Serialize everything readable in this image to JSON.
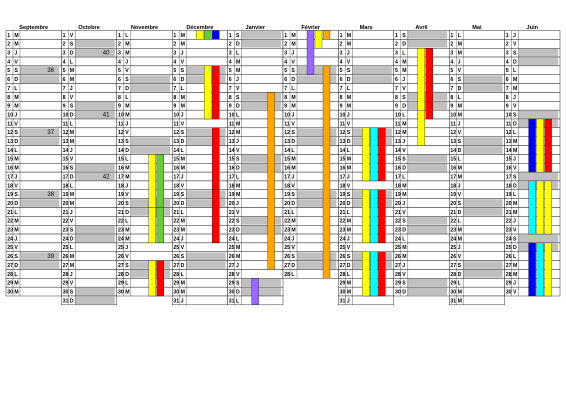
{
  "months": [
    {
      "name": "Septembre",
      "days": 30,
      "first_weekday": "M"
    },
    {
      "name": "Octobre",
      "days": 31,
      "first_weekday": "V"
    },
    {
      "name": "Novembre",
      "days": 30,
      "first_weekday": "L"
    },
    {
      "name": "Décembre",
      "days": 31,
      "first_weekday": "M"
    },
    {
      "name": "Janvier",
      "days": 31,
      "first_weekday": "S"
    },
    {
      "name": "Février",
      "days": 28,
      "first_weekday": "M"
    },
    {
      "name": "Mars",
      "days": 31,
      "first_weekday": "M"
    },
    {
      "name": "Avril",
      "days": 30,
      "first_weekday": "S"
    },
    {
      "name": "Mai",
      "days": 31,
      "first_weekday": "L"
    },
    {
      "name": "Juin",
      "days": 30,
      "first_weekday": "J"
    }
  ],
  "weekday_letters": [
    "L",
    "M",
    "M",
    "J",
    "V",
    "S",
    "D"
  ],
  "week_numbers": [
    {
      "month": 0,
      "day": 5,
      "label": "36"
    },
    {
      "month": 0,
      "day": 12,
      "label": "37"
    },
    {
      "month": 0,
      "day": 19,
      "label": "38"
    },
    {
      "month": 0,
      "day": 26,
      "label": "39"
    },
    {
      "month": 1,
      "day": 3,
      "label": "40"
    },
    {
      "month": 1,
      "day": 10,
      "label": "41"
    },
    {
      "month": 1,
      "day": 17,
      "label": "42"
    }
  ],
  "colors": {
    "weekend_fill": "#c0c0c0",
    "grid_line": "#000000",
    "yellow": "#ffff00",
    "red": "#ff0000",
    "orange": "#ffa500",
    "purple": "#9966ff",
    "cyan": "#00ffff",
    "green": "#66cc33",
    "blue": "#0000ff"
  },
  "bars": [
    {
      "month": 3,
      "col": 0,
      "start": 1,
      "end": 1,
      "color": "yellow"
    },
    {
      "month": 3,
      "col": 1,
      "start": 1,
      "end": 1,
      "color": "green"
    },
    {
      "month": 3,
      "col": 2,
      "start": 1,
      "end": 1,
      "color": "blue"
    },
    {
      "month": 3,
      "col": 1,
      "start": 5,
      "end": 10,
      "color": "yellow"
    },
    {
      "month": 3,
      "col": 2,
      "start": 5,
      "end": 10,
      "color": "red"
    },
    {
      "month": 3,
      "col": 2,
      "start": 12,
      "end": 18,
      "color": "red"
    },
    {
      "month": 3,
      "col": 2,
      "start": 19,
      "end": 24,
      "color": "red"
    },
    {
      "month": 2,
      "col": 1,
      "start": 15,
      "end": 20,
      "color": "yellow"
    },
    {
      "month": 2,
      "col": 2,
      "start": 15,
      "end": 20,
      "color": "green"
    },
    {
      "month": 2,
      "col": 1,
      "start": 21,
      "end": 24,
      "color": "yellow"
    },
    {
      "month": 2,
      "col": 2,
      "start": 21,
      "end": 24,
      "color": "green"
    },
    {
      "month": 2,
      "col": 1,
      "start": 27,
      "end": 30,
      "color": "yellow"
    },
    {
      "month": 2,
      "col": 2,
      "start": 27,
      "end": 30,
      "color": "red"
    },
    {
      "month": 4,
      "col": 2,
      "start": 8,
      "end": 27,
      "color": "orange"
    },
    {
      "month": 4,
      "col": 0,
      "start": 29,
      "end": 31,
      "color": "purple"
    },
    {
      "month": 5,
      "col": 0,
      "start": 1,
      "end": 5,
      "color": "purple"
    },
    {
      "month": 5,
      "col": 1,
      "start": 1,
      "end": 2,
      "color": "yellow"
    },
    {
      "month": 5,
      "col": 2,
      "start": 1,
      "end": 1,
      "color": "orange"
    },
    {
      "month": 5,
      "col": 2,
      "start": 5,
      "end": 28,
      "color": "orange"
    },
    {
      "month": 6,
      "col": 0,
      "start": 12,
      "end": 17,
      "color": "yellow"
    },
    {
      "month": 6,
      "col": 1,
      "start": 12,
      "end": 17,
      "color": "cyan"
    },
    {
      "month": 6,
      "col": 2,
      "start": 12,
      "end": 17,
      "color": "red"
    },
    {
      "month": 6,
      "col": 0,
      "start": 19,
      "end": 24,
      "color": "yellow"
    },
    {
      "month": 6,
      "col": 1,
      "start": 19,
      "end": 24,
      "color": "cyan"
    },
    {
      "month": 6,
      "col": 2,
      "start": 19,
      "end": 24,
      "color": "red"
    },
    {
      "month": 6,
      "col": 0,
      "start": 26,
      "end": 30,
      "color": "yellow"
    },
    {
      "month": 6,
      "col": 1,
      "start": 26,
      "end": 30,
      "color": "cyan"
    },
    {
      "month": 6,
      "col": 2,
      "start": 26,
      "end": 30,
      "color": "red"
    },
    {
      "month": 7,
      "col": 0,
      "start": 3,
      "end": 10,
      "color": "yellow"
    },
    {
      "month": 7,
      "col": 1,
      "start": 3,
      "end": 10,
      "color": "red"
    },
    {
      "month": 7,
      "col": 0,
      "start": 10,
      "end": 13,
      "color": "yellow"
    },
    {
      "month": 9,
      "col": 0,
      "start": 11,
      "end": 16,
      "color": "blue"
    },
    {
      "month": 9,
      "col": 1,
      "start": 11,
      "end": 16,
      "color": "yellow"
    },
    {
      "month": 9,
      "col": 2,
      "start": 11,
      "end": 16,
      "color": "red"
    },
    {
      "month": 9,
      "col": 0,
      "start": 18,
      "end": 23,
      "color": "cyan"
    },
    {
      "month": 9,
      "col": 1,
      "start": 18,
      "end": 23,
      "color": "yellow"
    },
    {
      "month": 9,
      "col": 2,
      "start": 18,
      "end": 23,
      "color": "yellow"
    },
    {
      "month": 9,
      "col": 0,
      "start": 25,
      "end": 30,
      "color": "blue"
    },
    {
      "month": 9,
      "col": 1,
      "start": 25,
      "end": 30,
      "color": "cyan"
    },
    {
      "month": 9,
      "col": 2,
      "start": 25,
      "end": 30,
      "color": "yellow"
    }
  ]
}
